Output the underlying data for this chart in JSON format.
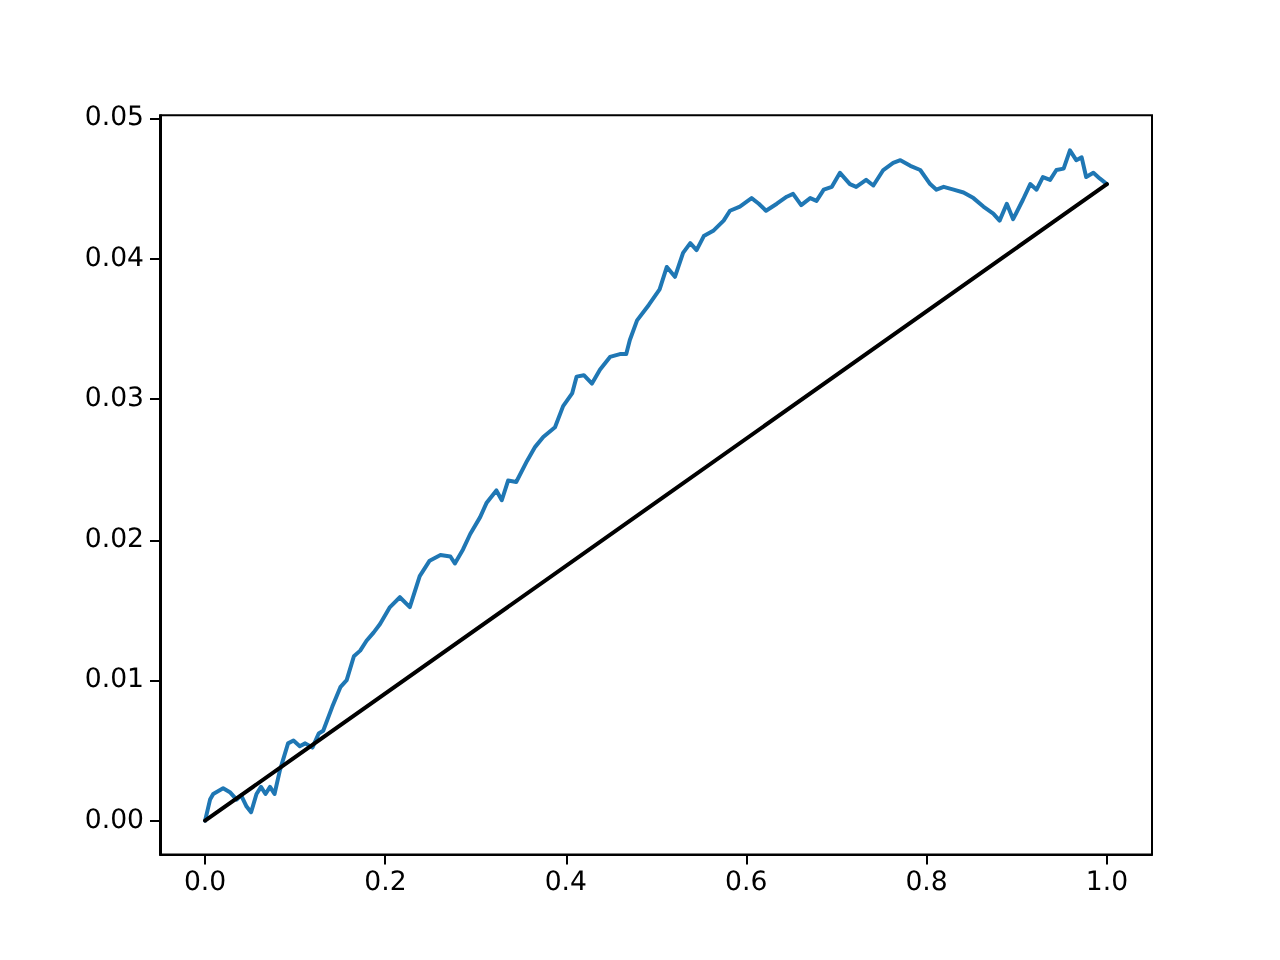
{
  "chart_data": {
    "type": "line",
    "xlim": [
      -0.05,
      1.05
    ],
    "ylim": [
      -0.0024,
      0.0502
    ],
    "xticks": [
      {
        "value": 0,
        "label": "0.0"
      },
      0.2,
      0.4,
      0.6,
      0.8,
      {
        "value": 1,
        "label": "1.0"
      }
    ],
    "yticks": [
      {
        "value": 0,
        "label": "0.00"
      },
      0.01,
      0.02,
      0.03,
      0.04,
      {
        "value": 0.05,
        "label": "0.05"
      }
    ],
    "marker": "none",
    "line_style": "solid",
    "series": [
      {
        "color": "#1f77b4",
        "x": [
          0,
          0.0055,
          0.009,
          0.02,
          0.028,
          0.035,
          0.04,
          0.046,
          0.051,
          0.057,
          0.062,
          0.067,
          0.072,
          0.077,
          0.083,
          0.092,
          0.098,
          0.105,
          0.111,
          0.119,
          0.126,
          0.131,
          0.141,
          0.15,
          0.157,
          0.165,
          0.172,
          0.179,
          0.187,
          0.194,
          0.205,
          0.216,
          0.227,
          0.238,
          0.249,
          0.261,
          0.272,
          0.277,
          0.286,
          0.294,
          0.305,
          0.312,
          0.323,
          0.329,
          0.336,
          0.345,
          0.357,
          0.366,
          0.375,
          0.388,
          0.397,
          0.407,
          0.412,
          0.42,
          0.429,
          0.438,
          0.449,
          0.46,
          0.467,
          0.471,
          0.479,
          0.492,
          0.504,
          0.512,
          0.521,
          0.53,
          0.538,
          0.545,
          0.553,
          0.564,
          0.575,
          0.582,
          0.593,
          0.606,
          0.614,
          0.622,
          0.634,
          0.645,
          0.652,
          0.661,
          0.671,
          0.678,
          0.686,
          0.695,
          0.704,
          0.715,
          0.722,
          0.733,
          0.741,
          0.752,
          0.763,
          0.771,
          0.782,
          0.793,
          0.804,
          0.811,
          0.819,
          0.83,
          0.841,
          0.852,
          0.863,
          0.874,
          0.881,
          0.889,
          0.896,
          0.907,
          0.915,
          0.922,
          0.929,
          0.937,
          0.944,
          0.952,
          0.959,
          0.966,
          0.972,
          0.977,
          0.985,
          0.992,
          1.0
        ],
        "values": [
          0,
          0.0015,
          0.0019,
          0.0023,
          0.002,
          0.0015,
          0.0018,
          0.001,
          0.0006,
          0.0019,
          0.0024,
          0.0019,
          0.0024,
          0.0019,
          0.0036,
          0.0055,
          0.0057,
          0.0053,
          0.0055,
          0.0052,
          0.0062,
          0.0064,
          0.0081,
          0.0095,
          0.01,
          0.0117,
          0.0121,
          0.0128,
          0.0134,
          0.014,
          0.0152,
          0.0159,
          0.0152,
          0.0174,
          0.0185,
          0.0189,
          0.0188,
          0.0183,
          0.0193,
          0.0204,
          0.0216,
          0.0226,
          0.0235,
          0.0228,
          0.0242,
          0.0241,
          0.0256,
          0.0266,
          0.0273,
          0.028,
          0.0295,
          0.0304,
          0.0316,
          0.0317,
          0.0311,
          0.0321,
          0.033,
          0.0332,
          0.0332,
          0.0342,
          0.0356,
          0.0367,
          0.0378,
          0.0394,
          0.0387,
          0.0404,
          0.0411,
          0.0406,
          0.0416,
          0.042,
          0.0427,
          0.0434,
          0.0437,
          0.0443,
          0.0439,
          0.0434,
          0.0439,
          0.0444,
          0.0446,
          0.0438,
          0.0443,
          0.0441,
          0.0449,
          0.0451,
          0.0461,
          0.0453,
          0.0451,
          0.0456,
          0.0452,
          0.0463,
          0.0468,
          0.047,
          0.0466,
          0.0463,
          0.0453,
          0.0449,
          0.0451,
          0.0449,
          0.0447,
          0.0443,
          0.0437,
          0.0432,
          0.0427,
          0.0439,
          0.0428,
          0.0442,
          0.0453,
          0.0449,
          0.0458,
          0.0456,
          0.0463,
          0.0464,
          0.0477,
          0.047,
          0.0472,
          0.0458,
          0.0461,
          0.0457,
          0.0453
        ]
      },
      {
        "color": "#000000",
        "x": [
          0,
          1
        ],
        "values": [
          0,
          0.0453
        ]
      }
    ]
  }
}
